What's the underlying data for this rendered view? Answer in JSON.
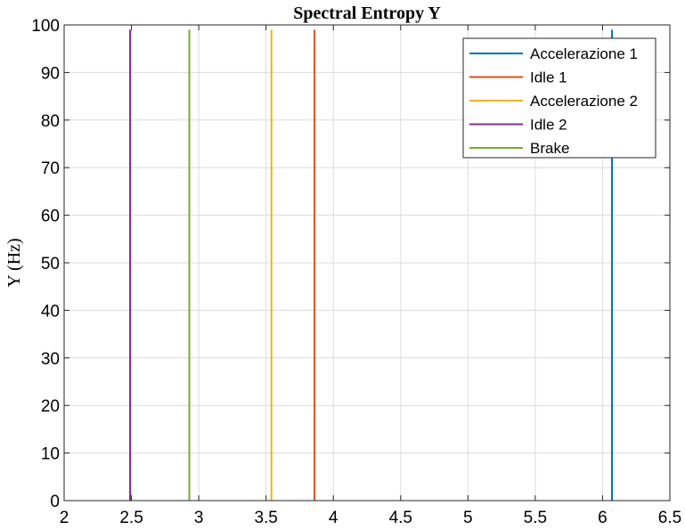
{
  "chart_data": {
    "type": "line",
    "title": "Spectral Entropy Y",
    "xlabel": "",
    "ylabel": "Y (Hz)",
    "xlim": [
      2,
      6.5
    ],
    "ylim": [
      0,
      100
    ],
    "xticks": [
      "2",
      "2.5",
      "3",
      "3.5",
      "4",
      "4.5",
      "5",
      "5.5",
      "6",
      "6.5"
    ],
    "yticks": [
      "0",
      "10",
      "20",
      "30",
      "40",
      "50",
      "60",
      "70",
      "80",
      "90",
      "100"
    ],
    "grid": true,
    "legend_position": "top-right",
    "series": [
      {
        "name": "Accelerazione 1",
        "color": "#0072BD",
        "x": [
          6.07,
          6.07
        ],
        "y": [
          0,
          99
        ]
      },
      {
        "name": "Idle 1",
        "color": "#D95319",
        "x": [
          3.86,
          3.86
        ],
        "y": [
          0,
          99
        ]
      },
      {
        "name": "Accelerazione 2",
        "color": "#EDB120",
        "x": [
          3.54,
          3.54
        ],
        "y": [
          0,
          99
        ]
      },
      {
        "name": "Idle 2",
        "color": "#7E2F8E",
        "x": [
          2.49,
          2.49
        ],
        "y": [
          0,
          99
        ]
      },
      {
        "name": "Brake",
        "color": "#77AC30",
        "x": [
          2.93,
          2.93
        ],
        "y": [
          0,
          99
        ]
      }
    ]
  }
}
